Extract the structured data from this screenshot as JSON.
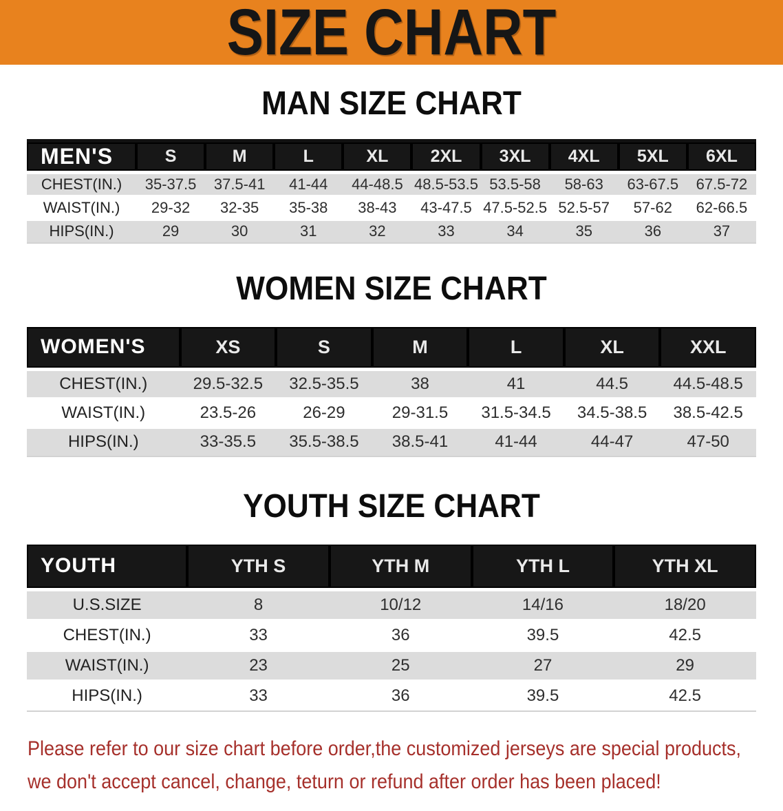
{
  "banner": {
    "title": "SIZE CHART"
  },
  "sections": [
    {
      "id": "mens",
      "title": "MAN SIZE CHART",
      "corner_label": "MEN'S",
      "columns": [
        "S",
        "M",
        "L",
        "XL",
        "2XL",
        "3XL",
        "4XL",
        "5XL",
        "6XL"
      ],
      "rows": [
        {
          "label": "CHEST(IN.)",
          "values": [
            "35-37.5",
            "37.5-41",
            "41-44",
            "44-48.5",
            "48.5-53.5",
            "53.5-58",
            "58-63",
            "63-67.5",
            "67.5-72"
          ]
        },
        {
          "label": "WAIST(IN.)",
          "values": [
            "29-32",
            "32-35",
            "35-38",
            "38-43",
            "43-47.5",
            "47.5-52.5",
            "52.5-57",
            "57-62",
            "62-66.5"
          ]
        },
        {
          "label": "HIPS(IN.)",
          "values": [
            "29",
            "30",
            "31",
            "32",
            "33",
            "34",
            "35",
            "36",
            "37"
          ]
        }
      ]
    },
    {
      "id": "womens",
      "title": "WOMEN SIZE CHART",
      "corner_label": "WOMEN'S",
      "columns": [
        "XS",
        "S",
        "M",
        "L",
        "XL",
        "XXL"
      ],
      "rows": [
        {
          "label": "CHEST(IN.)",
          "values": [
            "29.5-32.5",
            "32.5-35.5",
            "38",
            "41",
            "44.5",
            "44.5-48.5"
          ]
        },
        {
          "label": "WAIST(IN.)",
          "values": [
            "23.5-26",
            "26-29",
            "29-31.5",
            "31.5-34.5",
            "34.5-38.5",
            "38.5-42.5"
          ]
        },
        {
          "label": "HIPS(IN.)",
          "values": [
            "33-35.5",
            "35.5-38.5",
            "38.5-41",
            "41-44",
            "44-47",
            "47-50"
          ]
        }
      ]
    },
    {
      "id": "youth",
      "title": "YOUTH SIZE CHART",
      "corner_label": "YOUTH",
      "columns": [
        "YTH S",
        "YTH M",
        "YTH L",
        "YTH XL"
      ],
      "rows": [
        {
          "label": "U.S.SIZE",
          "values": [
            "8",
            "10/12",
            "14/16",
            "18/20"
          ]
        },
        {
          "label": "CHEST(IN.)",
          "values": [
            "33",
            "36",
            "39.5",
            "42.5"
          ]
        },
        {
          "label": "WAIST(IN.)",
          "values": [
            "23",
            "25",
            "27",
            "29"
          ]
        },
        {
          "label": "HIPS(IN.)",
          "values": [
            "33",
            "36",
            "39.5",
            "42.5"
          ]
        }
      ]
    }
  ],
  "footer": {
    "line1": "Please refer to our size chart before order,the customized jerseys are special products,",
    "line2": "we don't accept cancel, change, teturn or refund after order has been placed!"
  },
  "colors": {
    "banner_bg": "#E8821E",
    "table_header_bg": "#171717",
    "row_alt_bg": "#DCDCDC",
    "note_red": "#A6302B"
  }
}
